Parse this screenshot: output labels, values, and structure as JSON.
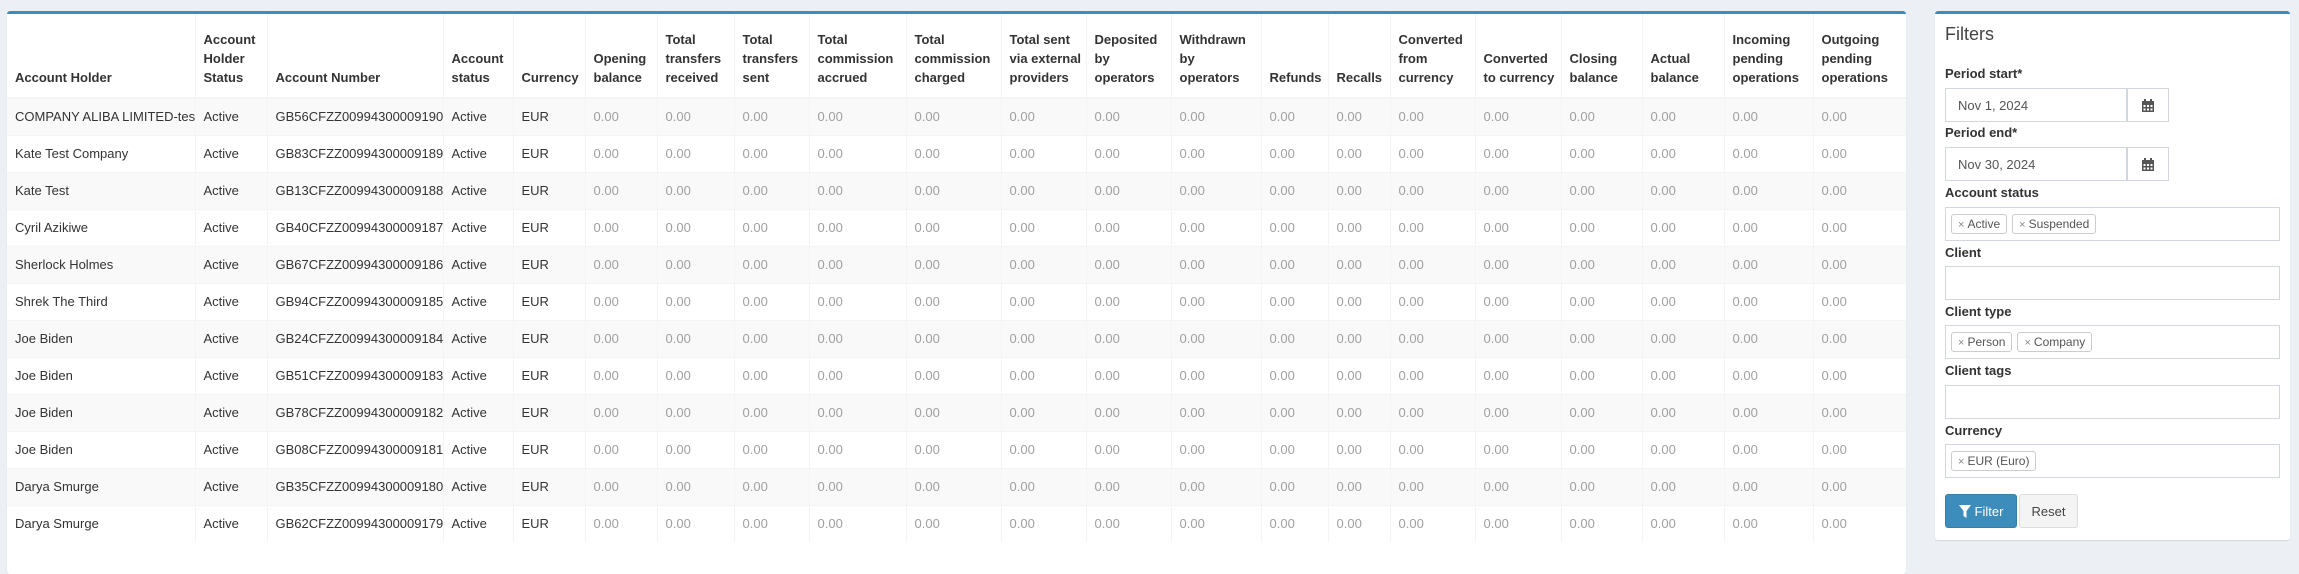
{
  "table": {
    "columns": [
      "Account Holder",
      "Account Holder Status",
      "Account Number",
      "Account status",
      "Currency",
      "Opening balance",
      "Total transfers received",
      "Total transfers sent",
      "Total commission accrued",
      "Total commission charged",
      "Total sent via external providers",
      "Deposited by operators",
      "Withdrawn by operators",
      "Refunds",
      "Recalls",
      "Converted from currency",
      "Converted to currency",
      "Closing balance",
      "Actual balance",
      "Incoming pending operations",
      "Outgoing pending operations"
    ],
    "rows": [
      {
        "holder": "COMPANY ALIBA LIMITED-test",
        "holder_status": "Active",
        "number": "GB56CFZZ00994300009190",
        "status": "Active",
        "currency": "EUR",
        "values": [
          "0.00",
          "0.00",
          "0.00",
          "0.00",
          "0.00",
          "0.00",
          "0.00",
          "0.00",
          "0.00",
          "0.00",
          "0.00",
          "0.00",
          "0.00",
          "0.00",
          "0.00",
          "0.00"
        ]
      },
      {
        "holder": "Kate Test Company",
        "holder_status": "Active",
        "number": "GB83CFZZ00994300009189",
        "status": "Active",
        "currency": "EUR",
        "values": [
          "0.00",
          "0.00",
          "0.00",
          "0.00",
          "0.00",
          "0.00",
          "0.00",
          "0.00",
          "0.00",
          "0.00",
          "0.00",
          "0.00",
          "0.00",
          "0.00",
          "0.00",
          "0.00"
        ]
      },
      {
        "holder": "Kate Test",
        "holder_status": "Active",
        "number": "GB13CFZZ00994300009188",
        "status": "Active",
        "currency": "EUR",
        "values": [
          "0.00",
          "0.00",
          "0.00",
          "0.00",
          "0.00",
          "0.00",
          "0.00",
          "0.00",
          "0.00",
          "0.00",
          "0.00",
          "0.00",
          "0.00",
          "0.00",
          "0.00",
          "0.00"
        ]
      },
      {
        "holder": "Cyril Azikiwe",
        "holder_status": "Active",
        "number": "GB40CFZZ00994300009187",
        "status": "Active",
        "currency": "EUR",
        "values": [
          "0.00",
          "0.00",
          "0.00",
          "0.00",
          "0.00",
          "0.00",
          "0.00",
          "0.00",
          "0.00",
          "0.00",
          "0.00",
          "0.00",
          "0.00",
          "0.00",
          "0.00",
          "0.00"
        ]
      },
      {
        "holder": "Sherlock Holmes",
        "holder_status": "Active",
        "number": "GB67CFZZ00994300009186",
        "status": "Active",
        "currency": "EUR",
        "values": [
          "0.00",
          "0.00",
          "0.00",
          "0.00",
          "0.00",
          "0.00",
          "0.00",
          "0.00",
          "0.00",
          "0.00",
          "0.00",
          "0.00",
          "0.00",
          "0.00",
          "0.00",
          "0.00"
        ]
      },
      {
        "holder": "Shrek The Third",
        "holder_status": "Active",
        "number": "GB94CFZZ00994300009185",
        "status": "Active",
        "currency": "EUR",
        "values": [
          "0.00",
          "0.00",
          "0.00",
          "0.00",
          "0.00",
          "0.00",
          "0.00",
          "0.00",
          "0.00",
          "0.00",
          "0.00",
          "0.00",
          "0.00",
          "0.00",
          "0.00",
          "0.00"
        ]
      },
      {
        "holder": "Joe Biden",
        "holder_status": "Active",
        "number": "GB24CFZZ00994300009184",
        "status": "Active",
        "currency": "EUR",
        "values": [
          "0.00",
          "0.00",
          "0.00",
          "0.00",
          "0.00",
          "0.00",
          "0.00",
          "0.00",
          "0.00",
          "0.00",
          "0.00",
          "0.00",
          "0.00",
          "0.00",
          "0.00",
          "0.00"
        ]
      },
      {
        "holder": "Joe Biden",
        "holder_status": "Active",
        "number": "GB51CFZZ00994300009183",
        "status": "Active",
        "currency": "EUR",
        "values": [
          "0.00",
          "0.00",
          "0.00",
          "0.00",
          "0.00",
          "0.00",
          "0.00",
          "0.00",
          "0.00",
          "0.00",
          "0.00",
          "0.00",
          "0.00",
          "0.00",
          "0.00",
          "0.00"
        ]
      },
      {
        "holder": "Joe Biden",
        "holder_status": "Active",
        "number": "GB78CFZZ00994300009182",
        "status": "Active",
        "currency": "EUR",
        "values": [
          "0.00",
          "0.00",
          "0.00",
          "0.00",
          "0.00",
          "0.00",
          "0.00",
          "0.00",
          "0.00",
          "0.00",
          "0.00",
          "0.00",
          "0.00",
          "0.00",
          "0.00",
          "0.00"
        ]
      },
      {
        "holder": "Joe Biden",
        "holder_status": "Active",
        "number": "GB08CFZZ00994300009181",
        "status": "Active",
        "currency": "EUR",
        "values": [
          "0.00",
          "0.00",
          "0.00",
          "0.00",
          "0.00",
          "0.00",
          "0.00",
          "0.00",
          "0.00",
          "0.00",
          "0.00",
          "0.00",
          "0.00",
          "0.00",
          "0.00",
          "0.00"
        ]
      },
      {
        "holder": "Darya Smurge",
        "holder_status": "Active",
        "number": "GB35CFZZ00994300009180",
        "status": "Active",
        "currency": "EUR",
        "values": [
          "0.00",
          "0.00",
          "0.00",
          "0.00",
          "0.00",
          "0.00",
          "0.00",
          "0.00",
          "0.00",
          "0.00",
          "0.00",
          "0.00",
          "0.00",
          "0.00",
          "0.00",
          "0.00"
        ]
      },
      {
        "holder": "Darya Smurge",
        "holder_status": "Active",
        "number": "GB62CFZZ00994300009179",
        "status": "Active",
        "currency": "EUR",
        "values": [
          "0.00",
          "0.00",
          "0.00",
          "0.00",
          "0.00",
          "0.00",
          "0.00",
          "0.00",
          "0.00",
          "0.00",
          "0.00",
          "0.00",
          "0.00",
          "0.00",
          "0.00",
          "0.00"
        ]
      }
    ]
  },
  "filters": {
    "title": "Filters",
    "period_start": {
      "label": "Period start*",
      "value": "Nov 1, 2024",
      "icon": "calendar-icon"
    },
    "period_end": {
      "label": "Period end*",
      "value": "Nov 30, 2024",
      "icon": "calendar-icon"
    },
    "account_status": {
      "label": "Account status",
      "tags": [
        "Active",
        "Suspended"
      ]
    },
    "client": {
      "label": "Client",
      "value": ""
    },
    "client_type": {
      "label": "Client type",
      "tags": [
        "Person",
        "Company"
      ]
    },
    "client_tags": {
      "label": "Client tags",
      "value": ""
    },
    "currency": {
      "label": "Currency",
      "tags": [
        "EUR (Euro)"
      ]
    },
    "filter_button": "Filter",
    "filter_icon": "funnel-icon",
    "reset_button": "Reset"
  },
  "colors": {
    "accent": "#3c8dbc",
    "background": "#ecf0f5"
  }
}
